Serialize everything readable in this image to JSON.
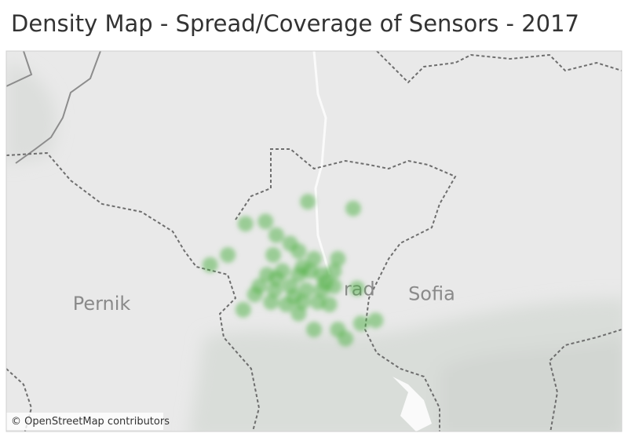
{
  "title": "Density Map - Spread/Coverage of Sensors - 2017",
  "map": {
    "lon_range": [
      22.9,
      23.7
    ],
    "lat_range": [
      42.45,
      42.95
    ],
    "color": "#4caf3f",
    "places": [
      {
        "name": "Pernik",
        "lon": 23.024,
        "lat": 42.617
      },
      {
        "name": "Sofia",
        "lon": 23.453,
        "lat": 42.63
      },
      {
        "name": "rad",
        "lon": 23.359,
        "lat": 42.636
      }
    ],
    "sensors": {
      "lon": [
        23.292,
        23.351,
        23.237,
        23.211,
        23.251,
        23.269,
        23.188,
        23.165,
        23.247,
        23.28,
        23.3,
        23.331,
        23.239,
        23.259,
        23.28,
        23.295,
        23.31,
        23.326,
        23.229,
        23.249,
        23.269,
        23.29,
        23.31,
        23.326,
        23.244,
        23.264,
        23.285,
        23.305,
        23.32,
        23.208,
        23.28,
        23.3,
        23.331,
        23.341,
        23.361,
        23.38,
        23.356,
        23.223,
        23.251,
        23.285,
        23.315,
        23.274
      ],
      "lat": [
        42.752,
        42.743,
        42.726,
        42.723,
        42.708,
        42.697,
        42.682,
        42.669,
        42.682,
        42.687,
        42.677,
        42.677,
        42.656,
        42.661,
        42.656,
        42.661,
        42.656,
        42.661,
        42.641,
        42.636,
        42.641,
        42.636,
        42.636,
        42.641,
        42.62,
        42.617,
        42.62,
        42.62,
        42.617,
        42.61,
        42.605,
        42.584,
        42.584,
        42.572,
        42.592,
        42.596,
        42.638,
        42.63,
        42.651,
        42.666,
        42.646,
        42.627
      ]
    },
    "attribution": "© OpenStreetMap contributors"
  }
}
